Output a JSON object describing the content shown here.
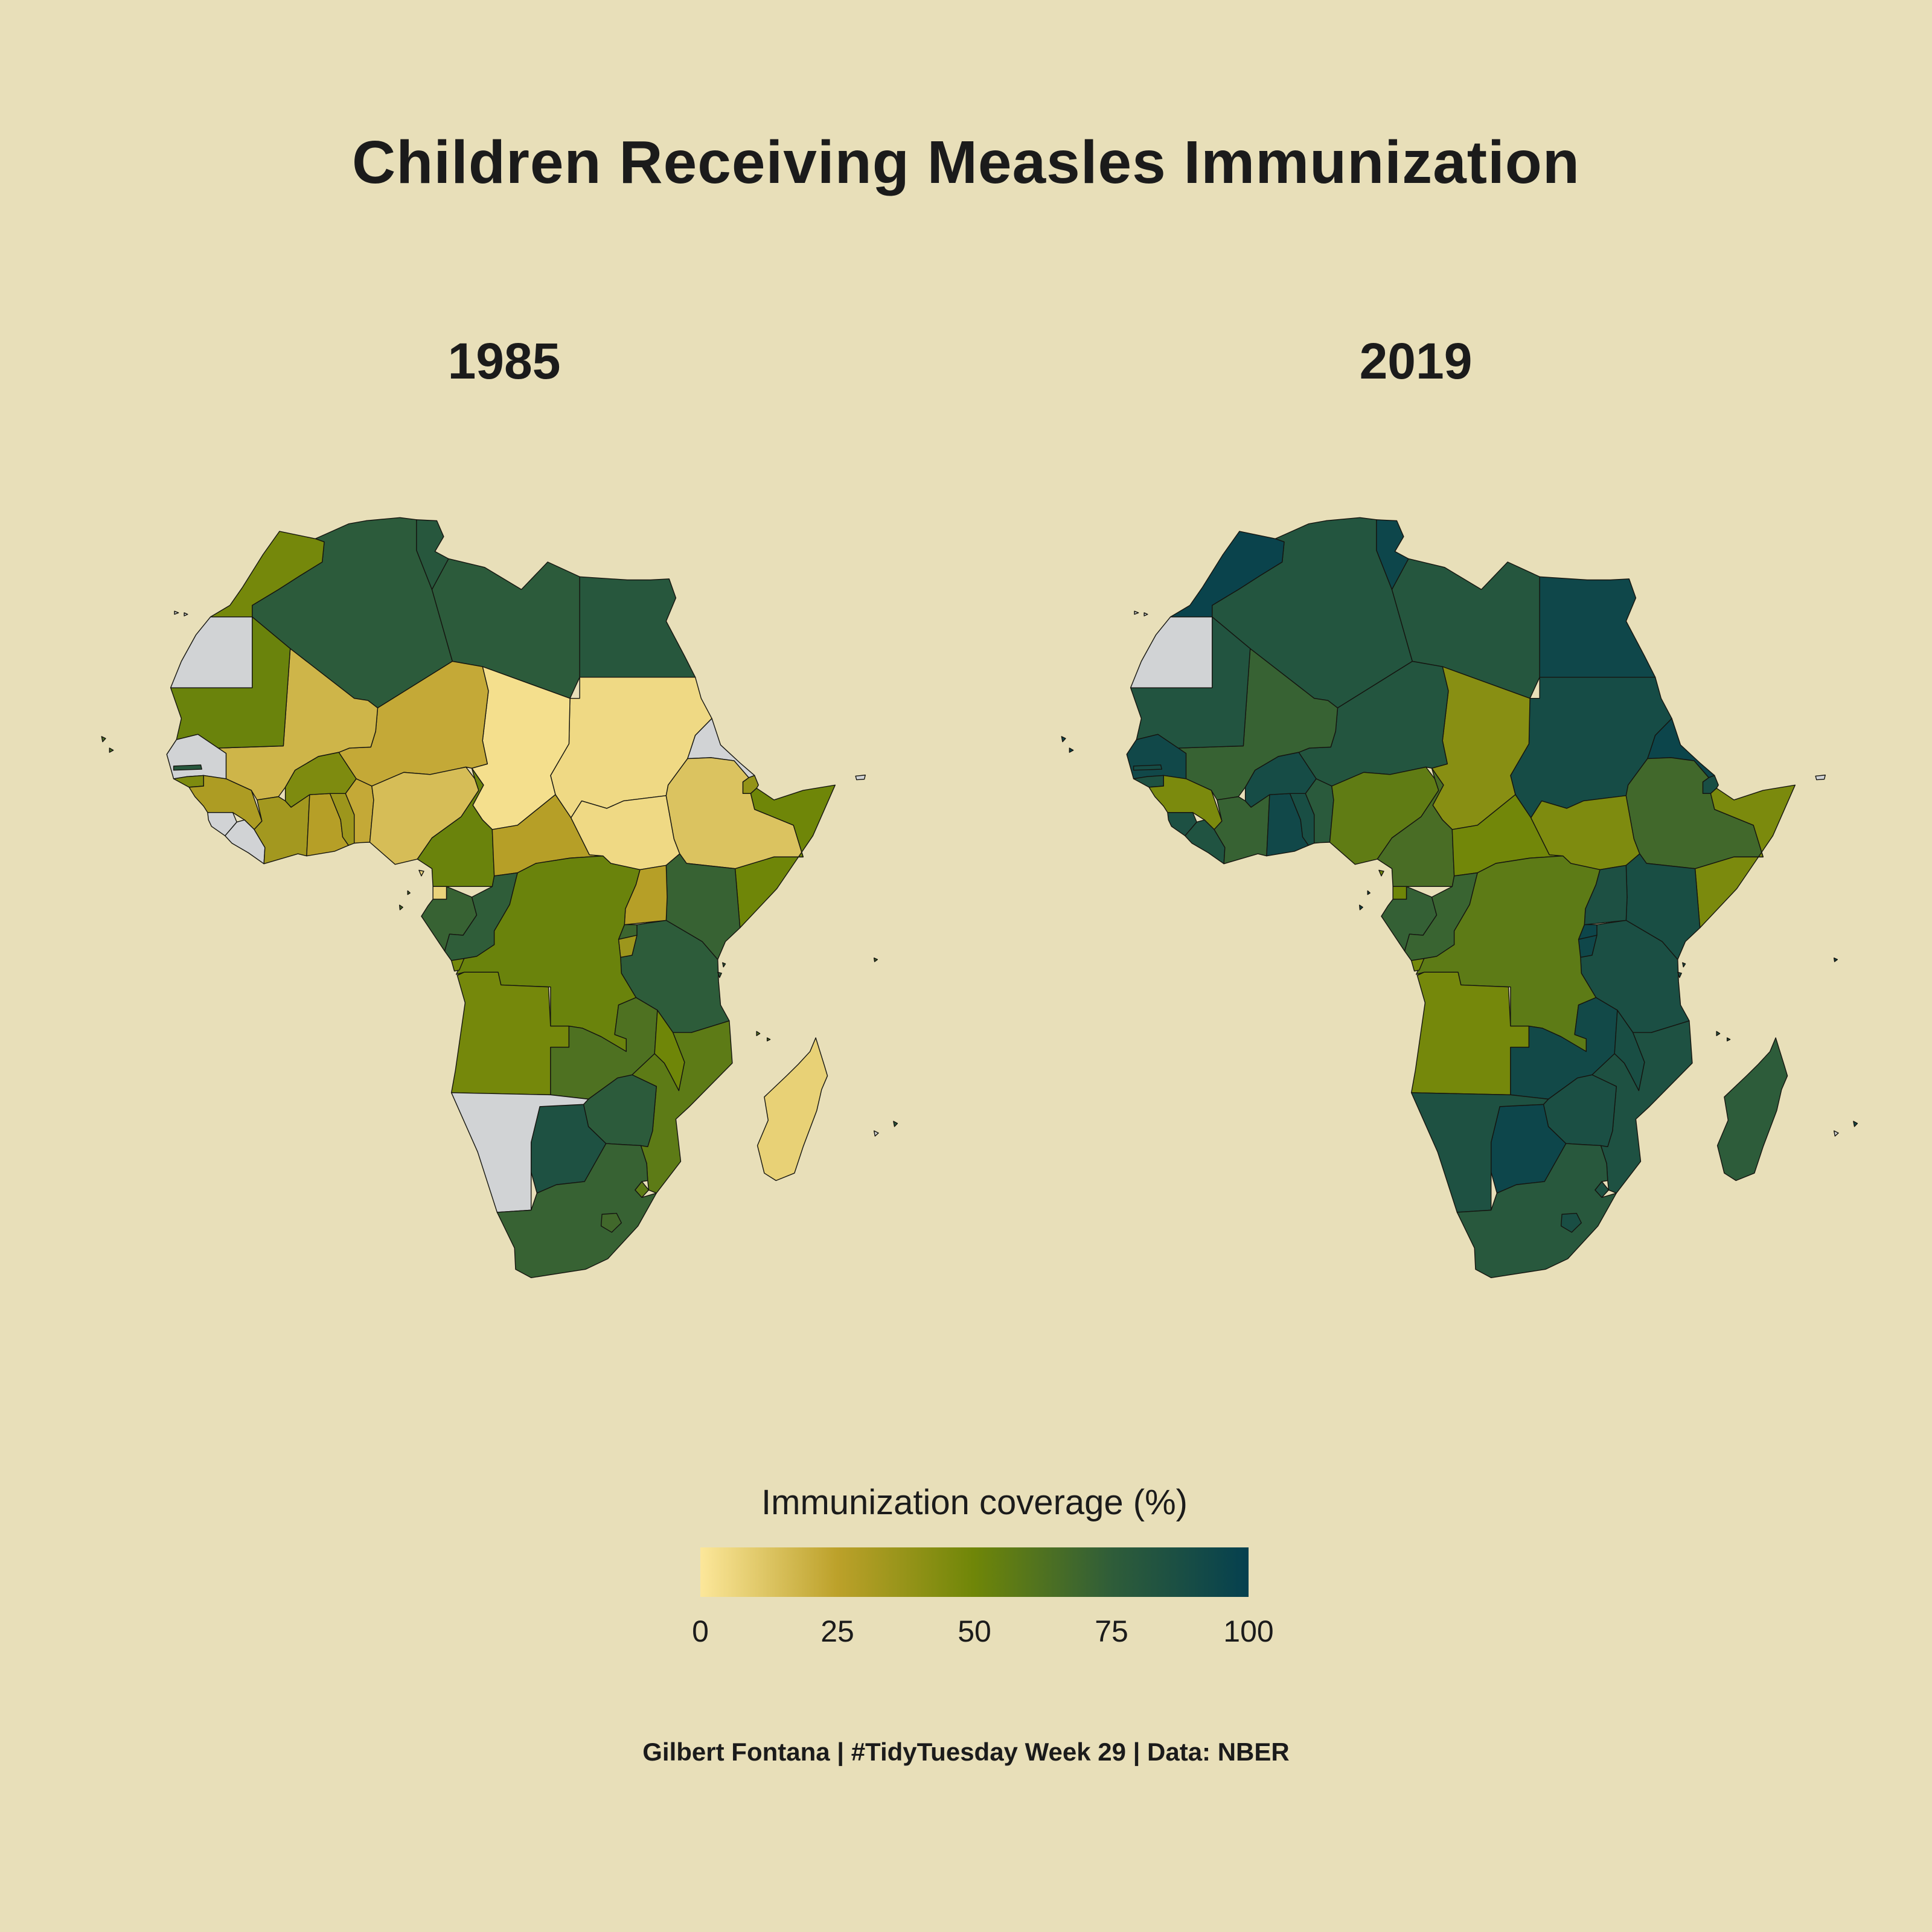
{
  "title": "Children Receiving Measles Immunization",
  "panels": [
    {
      "year": "1985"
    },
    {
      "year": "2019"
    }
  ],
  "legend": {
    "title": "Immunization coverage (%)",
    "ticks": [
      "0",
      "25",
      "50",
      "75",
      "100"
    ],
    "gradient_stops": [
      "#FCE79A",
      "#BCA12A",
      "#6F8608",
      "#2F5D39",
      "#05404F"
    ],
    "na_color": "#D1D3D5"
  },
  "caption": "Gilbert Fontana | #TidyTuesday Week 29 | Data: NBER",
  "colors": {
    "background": "#E8DFB9",
    "text": "#1B1B1B",
    "border": "#151510"
  },
  "chart_data": {
    "type": "choropleth",
    "region": "Africa",
    "title": "Children Receiving Measles Immunization",
    "value_label": "Immunization coverage (%)",
    "years": [
      "1985",
      "2019"
    ],
    "range": [
      0,
      100
    ],
    "legend_position": "bottom",
    "countries": [
      {
        "id": "algeria",
        "name": "Algeria",
        "values": {
          "1985": 77,
          "2019": 82
        }
      },
      {
        "id": "libya",
        "name": "Libya",
        "values": {
          "1985": 77,
          "2019": 81
        }
      },
      {
        "id": "egypt",
        "name": "Egypt",
        "values": {
          "1985": 80,
          "2019": 94
        }
      },
      {
        "id": "sudan",
        "name": "Sudan",
        "values": {
          "1985": 5,
          "2019": 90
        }
      },
      {
        "id": "chad",
        "name": "Chad",
        "values": {
          "1985": 3,
          "2019": 42
        }
      },
      {
        "id": "niger",
        "name": "Niger",
        "values": {
          "1985": 22,
          "2019": 82
        }
      },
      {
        "id": "mali",
        "name": "Mali",
        "values": {
          "1985": 18,
          "2019": 72
        }
      },
      {
        "id": "mauritania",
        "name": "Mauritania",
        "values": {
          "1985": 52,
          "2019": 83
        }
      },
      {
        "id": "morocco",
        "name": "Morocco",
        "values": {
          "1985": 48,
          "2019": 97
        }
      },
      {
        "id": "western-sahara",
        "name": "Western Sahara",
        "values": {
          "1985": null,
          "2019": null
        }
      },
      {
        "id": "tunisia",
        "name": "Tunisia",
        "values": {
          "1985": 80,
          "2019": 95
        }
      },
      {
        "id": "senegal",
        "name": "Senegal",
        "values": {
          "1985": null,
          "2019": 93
        }
      },
      {
        "id": "gambia",
        "name": "Gambia",
        "values": {
          "1985": 80,
          "2019": 90
        }
      },
      {
        "id": "guinea-bissau",
        "name": "Guinea-Bissau",
        "values": {
          "1985": 45,
          "2019": 85
        }
      },
      {
        "id": "guinea",
        "name": "Guinea",
        "values": {
          "1985": 30,
          "2019": 46
        }
      },
      {
        "id": "sierra-leone",
        "name": "Sierra Leone",
        "values": {
          "1985": null,
          "2019": 86
        }
      },
      {
        "id": "liberia",
        "name": "Liberia",
        "values": {
          "1985": null,
          "2019": 84
        }
      },
      {
        "id": "cote-divoire",
        "name": "Cote d'Ivoire",
        "values": {
          "1985": 33,
          "2019": 72
        }
      },
      {
        "id": "ghana",
        "name": "Ghana",
        "values": {
          "1985": 27,
          "2019": 93
        }
      },
      {
        "id": "togo",
        "name": "Togo",
        "values": {
          "1985": 35,
          "2019": 88
        }
      },
      {
        "id": "benin",
        "name": "Benin",
        "values": {
          "1985": 22,
          "2019": 78
        }
      },
      {
        "id": "burkina-faso",
        "name": "Burkina Faso",
        "values": {
          "1985": 45,
          "2019": 90
        }
      },
      {
        "id": "nigeria",
        "name": "Nigeria",
        "values": {
          "1985": 15,
          "2019": 56
        }
      },
      {
        "id": "cameroon",
        "name": "Cameroon",
        "values": {
          "1985": 52,
          "2019": 65
        }
      },
      {
        "id": "central-african-republic",
        "name": "Central African Republic",
        "values": {
          "1985": 27,
          "2019": 49
        }
      },
      {
        "id": "south-sudan",
        "name": "South Sudan",
        "values": {
          "1985": 5,
          "2019": 45
        }
      },
      {
        "id": "eritrea",
        "name": "Eritrea",
        "values": {
          "1985": null,
          "2019": 96
        }
      },
      {
        "id": "djibouti",
        "name": "Djibouti",
        "values": {
          "1985": 38,
          "2019": 88
        }
      },
      {
        "id": "ethiopia",
        "name": "Ethiopia",
        "values": {
          "1985": 13,
          "2019": 68
        }
      },
      {
        "id": "somalia",
        "name": "Somalia",
        "values": {
          "1985": 50,
          "2019": 46
        }
      },
      {
        "id": "kenya",
        "name": "Kenya",
        "values": {
          "1985": 72,
          "2019": 88
        }
      },
      {
        "id": "uganda",
        "name": "Uganda",
        "values": {
          "1985": 27,
          "2019": 86
        }
      },
      {
        "id": "rwanda",
        "name": "Rwanda",
        "values": {
          "1985": 70,
          "2019": 95
        }
      },
      {
        "id": "burundi",
        "name": "Burundi",
        "values": {
          "1985": 35,
          "2019": 94
        }
      },
      {
        "id": "tanzania",
        "name": "Tanzania",
        "values": {
          "1985": 76,
          "2019": 87
        }
      },
      {
        "id": "equatorial-guinea",
        "name": "Equatorial Guinea",
        "values": {
          "1985": 7,
          "2019": 50
        }
      },
      {
        "id": "gabon",
        "name": "Gabon",
        "values": {
          "1985": 72,
          "2019": 73
        }
      },
      {
        "id": "congo",
        "name": "Congo",
        "values": {
          "1985": 75,
          "2019": 71
        }
      },
      {
        "id": "dr-congo",
        "name": "DR Congo",
        "values": {
          "1985": 52,
          "2019": 57
        }
      },
      {
        "id": "angola",
        "name": "Angola",
        "values": {
          "1985": 48,
          "2019": 48
        }
      },
      {
        "id": "zambia",
        "name": "Zambia",
        "values": {
          "1985": 63,
          "2019": 92
        }
      },
      {
        "id": "malawi",
        "name": "Malawi",
        "values": {
          "1985": 50,
          "2019": 88
        }
      },
      {
        "id": "mozambique",
        "name": "Mozambique",
        "values": {
          "1985": 57,
          "2019": 85
        }
      },
      {
        "id": "zimbabwe",
        "name": "Zimbabwe",
        "values": {
          "1985": 77,
          "2019": 87
        }
      },
      {
        "id": "botswana",
        "name": "Botswana",
        "values": {
          "1985": 85,
          "2019": 95
        }
      },
      {
        "id": "namibia",
        "name": "Namibia",
        "values": {
          "1985": null,
          "2019": 85
        }
      },
      {
        "id": "south-africa",
        "name": "South Africa",
        "values": {
          "1985": 72,
          "2019": 79
        }
      },
      {
        "id": "lesotho",
        "name": "Lesotho",
        "values": {
          "1985": 68,
          "2019": 88
        }
      },
      {
        "id": "eswatini",
        "name": "Eswatini",
        "values": {
          "1985": 57,
          "2019": 85
        }
      },
      {
        "id": "madagascar",
        "name": "Madagascar",
        "values": {
          "1985": 8,
          "2019": 76
        }
      },
      {
        "id": "cape-verde",
        "name": "Cape Verde",
        "values": {
          "1985": 65,
          "2019": 95
        }
      },
      {
        "id": "sao-tome-and-principe",
        "name": "Sao Tome and Principe",
        "values": {
          "1985": 65,
          "2019": 92
        }
      },
      {
        "id": "comoros",
        "name": "Comoros",
        "values": {
          "1985": 60,
          "2019": 80
        }
      },
      {
        "id": "seychelles",
        "name": "Seychelles",
        "values": {
          "1985": 70,
          "2019": 95
        }
      },
      {
        "id": "mauritius",
        "name": "Mauritius",
        "values": {
          "1985": 80,
          "2019": 92
        }
      },
      {
        "id": "reunion",
        "name": "Reunion",
        "values": {
          "1985": null,
          "2019": null
        }
      },
      {
        "id": "canary-islands",
        "name": "Canary Islands",
        "values": {
          "1985": null,
          "2019": null
        }
      },
      {
        "id": "socotra",
        "name": "Socotra",
        "values": {
          "1985": null,
          "2019": null
        }
      }
    ]
  }
}
